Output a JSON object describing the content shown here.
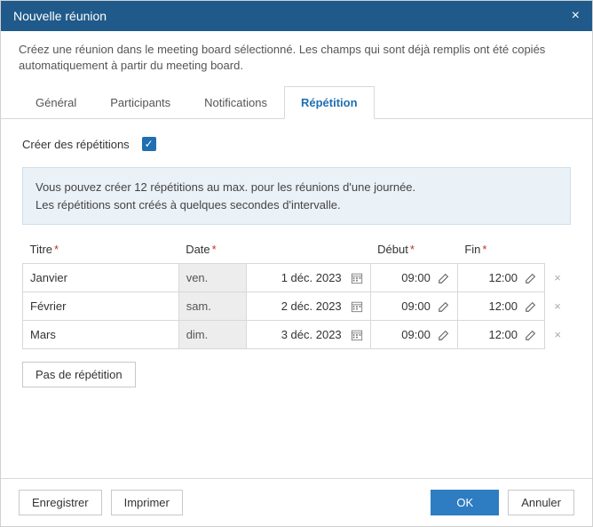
{
  "dialog": {
    "title": "Nouvelle réunion",
    "description": "Créez une réunion dans le meeting board sélectionné. Les champs qui sont déjà remplis ont été copiés automatiquement à partir du meeting board."
  },
  "tabs": {
    "general": "Général",
    "participants": "Participants",
    "notifications": "Notifications",
    "repetition": "Répétition"
  },
  "repetition": {
    "create_label": "Créer des répétitions",
    "checked": true,
    "info_line1": "Vous pouvez créer 12 répétitions au max. pour les réunions d'une journée.",
    "info_line2": "Les répétitions sont créés à quelques secondes d'intervalle.",
    "columns": {
      "title": "Titre",
      "date": "Date",
      "start": "Début",
      "end": "Fin"
    },
    "rows": [
      {
        "title": "Janvier",
        "day": "ven.",
        "date": "1 déc. 2023",
        "start": "09:00",
        "end": "12:00"
      },
      {
        "title": "Février",
        "day": "sam.",
        "date": "2 déc. 2023",
        "start": "09:00",
        "end": "12:00"
      },
      {
        "title": "Mars",
        "day": "dim.",
        "date": "3 déc. 2023",
        "start": "09:00",
        "end": "12:00"
      }
    ],
    "no_repetition_btn": "Pas de répétition"
  },
  "footer": {
    "save": "Enregistrer",
    "print": "Imprimer",
    "ok": "OK",
    "cancel": "Annuler"
  },
  "colors": {
    "header_bg": "#1f5a8a",
    "accent": "#2e7cc2",
    "info_bg": "#eaf1f7"
  }
}
